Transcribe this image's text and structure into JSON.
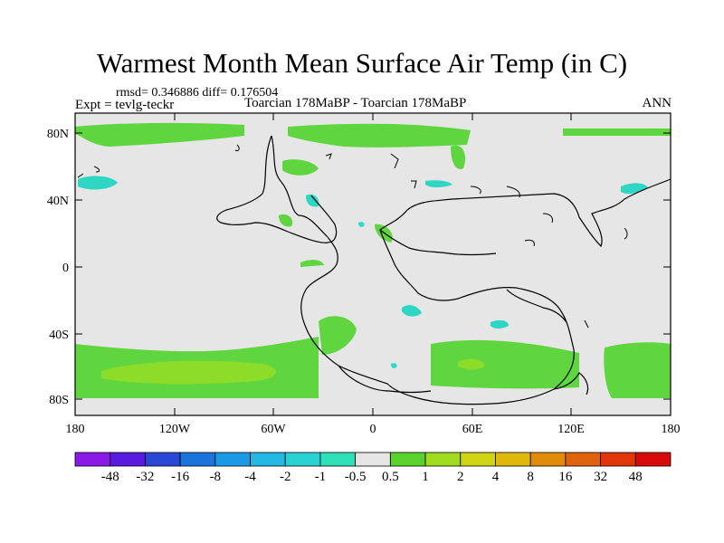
{
  "title": "Warmest Month Mean Surface Air Temp (in C)",
  "stats": "rmsd= 0.346886 diff= 0.176504",
  "expt": "Expt = tevlg-teckr",
  "subtitle": "Toarcian 178MaBP - Toarcian 178MaBP",
  "season": "ANN",
  "lat_labels": [
    "80N",
    "40N",
    "0",
    "40S",
    "80S"
  ],
  "lon_labels": [
    "180",
    "120W",
    "60W",
    "0",
    "60E",
    "120E",
    "180"
  ],
  "colorbar": {
    "labels": [
      "-48",
      "-32",
      "-16",
      "-8",
      "-4",
      "-2",
      "-1",
      "-0.5",
      "0.5",
      "1",
      "2",
      "4",
      "8",
      "16",
      "32",
      "48"
    ],
    "colors": [
      "#8a1be6",
      "#5a1be0",
      "#2a48d8",
      "#1a74dc",
      "#1a9ae6",
      "#22b8e2",
      "#28d2d2",
      "#2ee0b8",
      "#e6e6e6",
      "#5ad22e",
      "#a0dc1e",
      "#d0d214",
      "#e0b80a",
      "#e08c0a",
      "#e0620a",
      "#e0360a",
      "#d80a0a"
    ]
  },
  "colors": {
    "background": "#e6e6e6",
    "green": "#5fd63f",
    "lightgreen": "#8ddc2a",
    "cyan": "#2ed6c4",
    "coast": "#000000"
  }
}
